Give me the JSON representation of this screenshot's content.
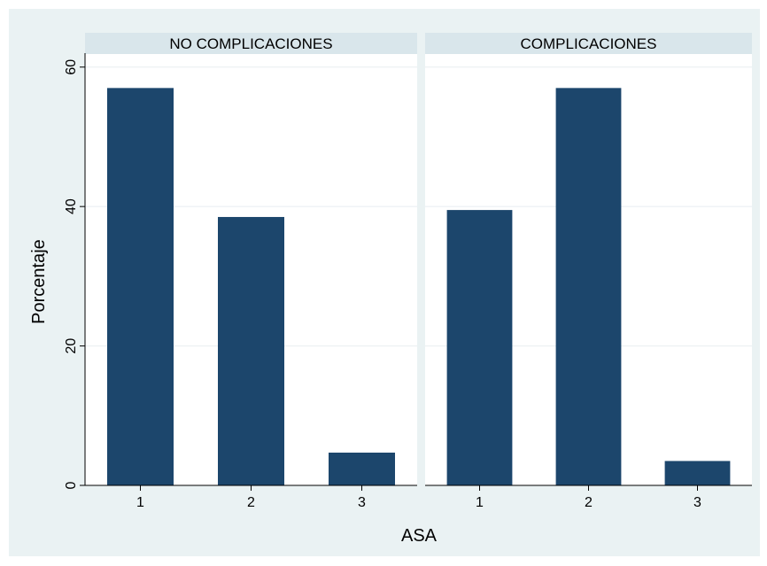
{
  "chart_data": {
    "type": "bar",
    "ylabel": "Porcentaje",
    "xlabel": "ASA",
    "ylim": [
      0,
      62
    ],
    "yticks": [
      0,
      20,
      40,
      60
    ],
    "grid": true,
    "colors": {
      "bar": "#1c466c",
      "panel_header": "#d9e6eb",
      "outer_bg": "#eaf2f3",
      "plot_bg": "#ffffff"
    },
    "panels": [
      {
        "title": "NO COMPLICACIONES",
        "categories": [
          "1",
          "2",
          "3"
        ],
        "values": [
          57,
          38.5,
          4.7
        ]
      },
      {
        "title": "COMPLICACIONES",
        "categories": [
          "1",
          "2",
          "3"
        ],
        "values": [
          39.5,
          57,
          3.5
        ]
      }
    ]
  }
}
